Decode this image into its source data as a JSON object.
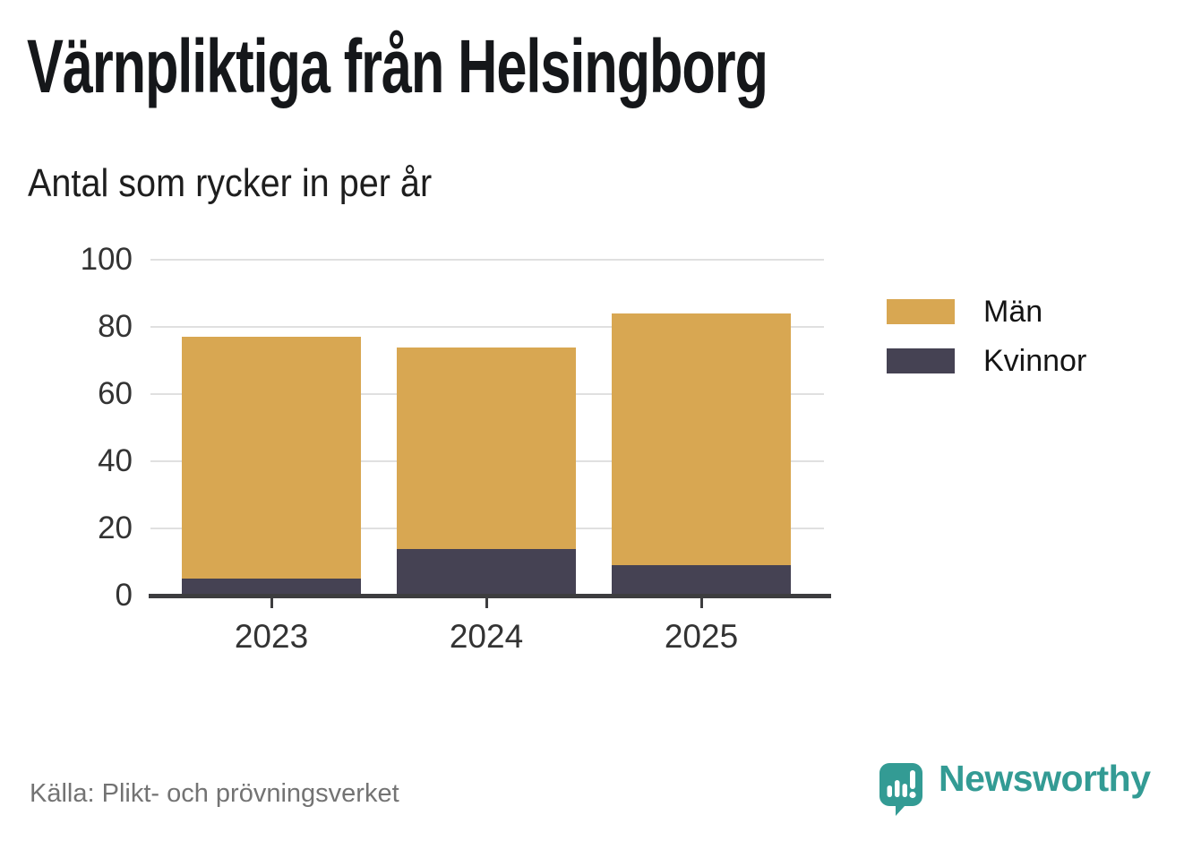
{
  "header": {
    "title": "Värnpliktiga från Helsingborg",
    "subtitle": "Antal som rycker in per år"
  },
  "footer": {
    "source": "Källa: Plikt- och prövningsverket",
    "brand": {
      "name": "Newsworthy",
      "icon": "bar-chart-speech-bubble-icon",
      "color": "#339b94"
    }
  },
  "colors": {
    "men": "#d8a752",
    "women": "#454253",
    "gridline": "#e0e0e0",
    "axis": "#3d3d3f",
    "tick_label": "#333333",
    "legend_label": "#141414",
    "title_text": "#15171a",
    "source_text": "#737373",
    "background": "#ffffff"
  },
  "chart_data": {
    "type": "bar",
    "stacked": true,
    "title": "Värnpliktiga från Helsingborg",
    "subtitle": "Antal som rycker in per år",
    "categories": [
      "2023",
      "2024",
      "2025"
    ],
    "series": [
      {
        "name": "Män",
        "key": "men",
        "color": "#d8a752",
        "values": [
          72,
          60,
          75
        ]
      },
      {
        "name": "Kvinnor",
        "key": "women",
        "color": "#454253",
        "values": [
          5,
          14,
          9
        ]
      }
    ],
    "stack_totals": [
      77,
      74,
      84
    ],
    "stack_order_bottom_to_top": [
      "Kvinnor",
      "Män"
    ],
    "xlabel": "",
    "ylabel": "",
    "ylim": [
      0,
      100
    ],
    "yticks": [
      0,
      20,
      40,
      60,
      80,
      100
    ],
    "grid": true,
    "legend_position": "right",
    "source": "Källa: Plikt- och prövningsverket"
  }
}
